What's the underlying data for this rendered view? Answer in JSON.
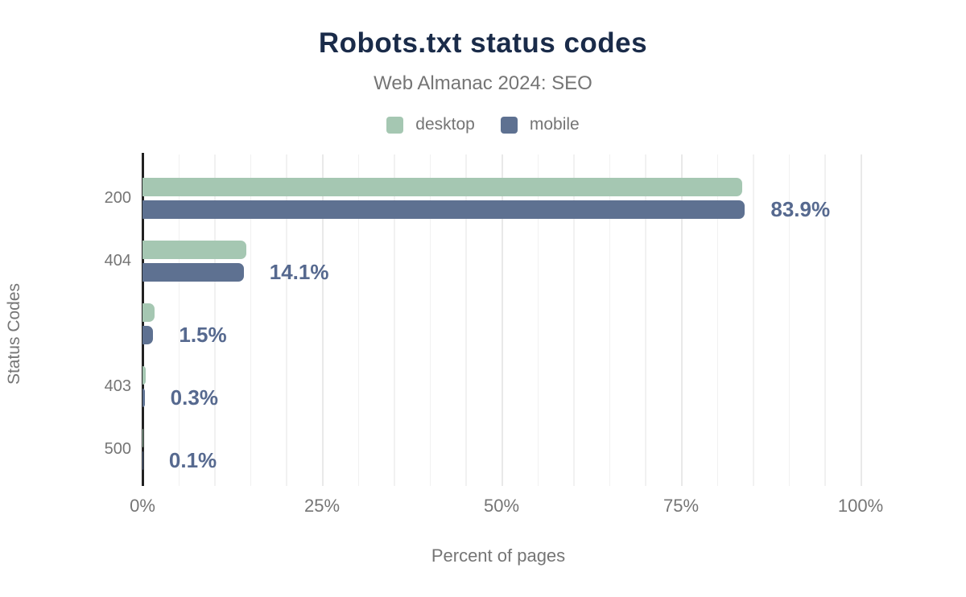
{
  "header": {
    "title": "Robots.txt status codes",
    "subtitle": "Web Almanac 2024: SEO"
  },
  "legend": [
    {
      "label": "desktop",
      "color": "#a5c7b2"
    },
    {
      "label": "mobile",
      "color": "#5e7191"
    }
  ],
  "chart_data": {
    "type": "bar",
    "orientation": "horizontal",
    "title": "Robots.txt status codes",
    "subtitle": "Web Almanac 2024: SEO",
    "categories": [
      "200",
      "404",
      "",
      "403",
      "500"
    ],
    "series": [
      {
        "name": "desktop",
        "color": "#a5c7b2",
        "values": [
          83.5,
          14.5,
          1.7,
          0.4,
          0.1
        ]
      },
      {
        "name": "mobile",
        "color": "#5e7191",
        "values": [
          83.9,
          14.1,
          1.5,
          0.3,
          0.1
        ]
      }
    ],
    "value_labels": [
      "83.9%",
      "14.1%",
      "1.5%",
      "0.3%",
      "0.1%"
    ],
    "value_labels_follow_series": "mobile",
    "xlabel": "Percent of pages",
    "ylabel": "Status Codes",
    "xlim": [
      0,
      100
    ],
    "x_ticks": [
      {
        "value": 0,
        "label": "0%"
      },
      {
        "value": 25,
        "label": "25%"
      },
      {
        "value": 50,
        "label": "50%"
      },
      {
        "value": 75,
        "label": "75%"
      },
      {
        "value": 100,
        "label": "100%"
      }
    ],
    "grid": {
      "on": true,
      "minor_step": 5,
      "major_step": 25
    },
    "legend_position": "top",
    "colors": {
      "title": "#1a2b49",
      "secondary_text": "#757575",
      "value_label": "#56698f",
      "axis_line": "#222222",
      "gridline": "#f1f1f1",
      "gridline_major": "#e9e9e9",
      "background": "#ffffff"
    }
  }
}
